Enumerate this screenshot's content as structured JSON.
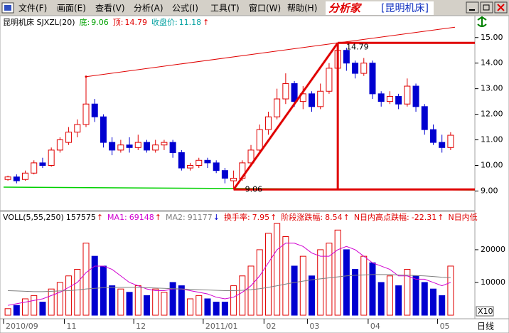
{
  "menu": [
    "文件(F)",
    "画面(E)",
    "查看(V)",
    "分析(A)",
    "公式(I)",
    "工具(T)",
    "窗口(W)",
    "帮助(H)"
  ],
  "app_title": "分析家",
  "window_title": "[昆明机床]",
  "chart_data": [
    {
      "type": "candlestick",
      "title": "昆明机床 SJXZL(20)",
      "indicators": [
        {
          "label": "底:",
          "value": 9.06,
          "color": "#00a000"
        },
        {
          "label": "顶:",
          "value": 14.79,
          "color": "#e00000"
        },
        {
          "label": "收盘价:",
          "value": 11.18,
          "color": "#00a0a0"
        }
      ],
      "trend_arrow": "↑",
      "categories": [
        "2010/09",
        null,
        null,
        null,
        null,
        null,
        null,
        "11",
        null,
        null,
        null,
        null,
        null,
        null,
        null,
        "12",
        null,
        null,
        null,
        null,
        null,
        null,
        null,
        "2011/01",
        null,
        null,
        null,
        null,
        null,
        null,
        "02",
        null,
        null,
        null,
        null,
        "03",
        null,
        null,
        null,
        null,
        null,
        null,
        "04",
        null,
        null,
        null,
        null,
        null,
        null,
        null,
        "05",
        null
      ],
      "open": [
        9.45,
        9.55,
        9.45,
        9.7,
        10.1,
        10.0,
        10.6,
        10.9,
        11.3,
        11.6,
        12.4,
        11.9,
        10.9,
        10.6,
        10.8,
        10.7,
        10.9,
        10.6,
        10.8,
        10.9,
        10.5,
        9.9,
        10.0,
        10.2,
        10.1,
        9.8,
        9.4,
        9.5,
        10.1,
        10.6,
        11.4,
        11.9,
        12.6,
        13.2,
        12.5,
        12.8,
        12.3,
        12.9,
        13.8,
        14.5,
        14.0,
        13.6,
        14.0,
        12.8,
        12.5,
        12.7,
        12.4,
        13.1,
        12.3,
        11.4,
        10.9,
        10.7
      ],
      "close": [
        9.55,
        9.4,
        9.7,
        10.1,
        10.0,
        10.6,
        11.0,
        11.3,
        11.6,
        12.4,
        11.9,
        10.9,
        10.6,
        10.8,
        10.7,
        10.9,
        10.6,
        10.8,
        10.9,
        10.5,
        9.9,
        10.0,
        10.2,
        10.1,
        9.8,
        9.5,
        9.5,
        10.1,
        10.6,
        11.4,
        11.9,
        12.6,
        13.2,
        12.5,
        12.8,
        12.3,
        12.9,
        13.8,
        14.5,
        14.0,
        13.6,
        14.0,
        12.8,
        12.5,
        12.7,
        12.4,
        13.1,
        12.3,
        11.4,
        10.9,
        10.7,
        11.18
      ],
      "high": [
        9.6,
        9.65,
        9.8,
        10.2,
        10.3,
        10.7,
        11.1,
        11.5,
        11.8,
        13.47,
        12.6,
        12.0,
        11.1,
        11.0,
        11.1,
        11.2,
        11.0,
        11.0,
        11.0,
        11.0,
        10.6,
        10.1,
        10.3,
        10.3,
        10.2,
        9.9,
        9.8,
        10.2,
        10.8,
        11.6,
        12.1,
        13.0,
        13.6,
        13.3,
        13.1,
        12.9,
        13.2,
        14.0,
        14.79,
        14.6,
        14.1,
        14.2,
        14.1,
        12.9,
        12.9,
        12.8,
        13.4,
        13.2,
        12.4,
        11.6,
        11.2,
        11.3
      ],
      "low": [
        9.4,
        9.3,
        9.4,
        9.65,
        9.9,
        9.95,
        10.5,
        10.8,
        11.1,
        11.5,
        11.7,
        10.7,
        10.4,
        10.5,
        10.5,
        10.6,
        10.5,
        10.5,
        10.6,
        10.3,
        9.8,
        9.8,
        9.9,
        9.9,
        9.7,
        9.3,
        9.06,
        9.4,
        10.0,
        10.5,
        11.2,
        11.8,
        12.4,
        12.3,
        12.2,
        12.1,
        12.2,
        12.8,
        13.6,
        13.7,
        13.4,
        13.5,
        12.6,
        12.3,
        12.4,
        12.2,
        12.3,
        12.1,
        11.2,
        10.8,
        10.5,
        10.6
      ],
      "up_color": "#e00000",
      "down_color": "#0000d0",
      "ylim": [
        8.4,
        15.8
      ],
      "yticks": [
        {
          "value": 15,
          "label": "15.00"
        },
        {
          "value": 14,
          "label": "14.00"
        },
        {
          "value": 13,
          "label": "13.00"
        },
        {
          "value": 12,
          "label": "12.00"
        },
        {
          "value": 11,
          "label": "11.00"
        },
        {
          "value": 10,
          "label": "10.00"
        },
        {
          "value": 9,
          "label": "9.00"
        }
      ]
    },
    {
      "type": "volume",
      "indicators": [
        {
          "label": "VOLL(5,55,250)",
          "value": 157575,
          "arrow": "↑",
          "color": "#000000",
          "arrow_color": "#e00000"
        },
        {
          "label": "MA1:",
          "value": 69148,
          "arrow": "↑",
          "color": "#d000d0",
          "arrow_color": "#e00000"
        },
        {
          "label": "MA2:",
          "value": 91177,
          "arrow": "↓",
          "color": "#808080",
          "arrow_color": "#0000d0"
        },
        {
          "label": "换手率:",
          "value": 7.95,
          "arrow": "↑",
          "color": "#e00000",
          "arrow_color": "#e00000"
        },
        {
          "label": "阶段涨跌幅:",
          "value": 8.54,
          "arrow": "↑",
          "color": "#e00000",
          "arrow_color": "#e00000"
        },
        {
          "label": "N日内高点跌幅:",
          "value": -22.31,
          "arrow": "↑",
          "color": "#e00000",
          "arrow_color": "#e00000"
        },
        {
          "label": "N日内低",
          "color": "#e00000"
        }
      ],
      "values": [
        2000,
        3000,
        5000,
        6000,
        4000,
        8000,
        10000,
        12000,
        14000,
        22000,
        18000,
        15000,
        9000,
        8000,
        7000,
        9000,
        6000,
        8000,
        7000,
        10000,
        9000,
        5000,
        6000,
        5000,
        4000,
        4000,
        9000,
        12000,
        15000,
        20000,
        25000,
        28000,
        24000,
        15000,
        18000,
        12000,
        20000,
        22000,
        26000,
        20000,
        14000,
        18000,
        16000,
        10000,
        12000,
        9000,
        14000,
        12000,
        10000,
        8000,
        6000,
        15000
      ],
      "series": [
        {
          "name": "MA1",
          "color": "#d000d0",
          "values": [
            3000,
            3500,
            4000,
            4500,
            5000,
            6000,
            7000,
            8500,
            10000,
            13000,
            15000,
            15000,
            14000,
            12000,
            10000,
            9000,
            8000,
            7500,
            7500,
            8000,
            8000,
            7500,
            7000,
            6500,
            5500,
            5000,
            5500,
            7000,
            9000,
            12000,
            16000,
            20000,
            22000,
            22000,
            21000,
            19000,
            18000,
            18000,
            20000,
            21000,
            20000,
            18000,
            16000,
            15000,
            14000,
            12000,
            12000,
            11000,
            11000,
            10000,
            9000,
            10000
          ]
        },
        {
          "name": "MA2",
          "color": "#808080",
          "values": [
            7500,
            7400,
            7300,
            7200,
            7200,
            7300,
            7400,
            7500,
            7700,
            8000,
            8200,
            8400,
            8500,
            8500,
            8500,
            8500,
            8400,
            8300,
            8200,
            8100,
            8000,
            7900,
            7800,
            7700,
            7600,
            7500,
            7500,
            7600,
            7800,
            8100,
            8500,
            9000,
            9500,
            10000,
            10400,
            10800,
            11100,
            11400,
            11700,
            12000,
            12200,
            12300,
            12400,
            12400,
            12400,
            12300,
            12200,
            12100,
            12000,
            11800,
            11600,
            11500
          ]
        }
      ],
      "ylim": [
        0,
        31500
      ],
      "yticks": [
        20000,
        10000
      ],
      "unit_label": "X10",
      "period_label": "日线"
    }
  ]
}
